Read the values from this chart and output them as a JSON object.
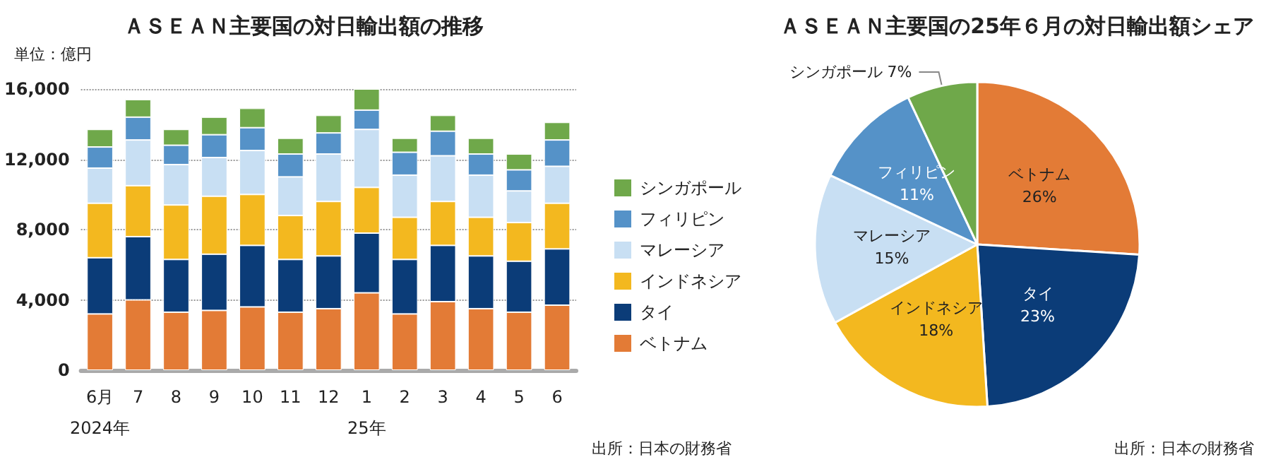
{
  "chart_data": [
    {
      "type": "bar",
      "title": "ＡＳＥＡＮ主要国の対日輸出額の推移",
      "ylabel": "単位：億円",
      "categories": [
        "6月\n2024年",
        "7",
        "8",
        "9",
        "10",
        "11",
        "12",
        "1\n25年",
        "2",
        "3",
        "4",
        "5",
        "6"
      ],
      "series": [
        {
          "name": "ベトナム",
          "color": "#e37b36",
          "values": [
            3200,
            4000,
            3300,
            3400,
            3600,
            3300,
            3500,
            4400,
            3200,
            3900,
            3500,
            3300,
            3700
          ]
        },
        {
          "name": "タイ",
          "color": "#0b3c78",
          "values": [
            3200,
            3600,
            3000,
            3200,
            3500,
            3000,
            3000,
            3400,
            3100,
            3200,
            3000,
            2900,
            3200
          ]
        },
        {
          "name": "インドネシア",
          "color": "#f3b81f",
          "values": [
            3100,
            2900,
            3100,
            3300,
            2900,
            2500,
            3100,
            2600,
            2400,
            2500,
            2200,
            2200,
            2600
          ]
        },
        {
          "name": "マレーシア",
          "color": "#c8dff3",
          "values": [
            2000,
            2600,
            2300,
            2200,
            2500,
            2200,
            2700,
            3300,
            2400,
            2600,
            2400,
            1800,
            2100
          ]
        },
        {
          "name": "フィリピン",
          "color": "#5592c8",
          "values": [
            1200,
            1300,
            1100,
            1300,
            1300,
            1300,
            1200,
            1100,
            1300,
            1400,
            1200,
            1200,
            1500
          ]
        },
        {
          "name": "シンガポール",
          "color": "#6fa84a",
          "values": [
            1000,
            1000,
            900,
            1000,
            1100,
            900,
            1000,
            1200,
            800,
            900,
            900,
            900,
            1000
          ]
        }
      ],
      "stacked": true,
      "ylim": [
        0,
        16000
      ],
      "yticks": [
        0,
        {
          "value": 4000,
          "label": "4,000"
        },
        {
          "value": 8000,
          "label": "8,000"
        },
        {
          "value": 12000,
          "label": "12,000"
        },
        {
          "value": 16000,
          "label": "16,000"
        }
      ],
      "grid": "y",
      "legend": "right",
      "annotations": [
        "出所：日本の財務省"
      ]
    },
    {
      "type": "pie",
      "title": "ＡＳＥＡＮ主要国の25年６月の対日輸出額シェア",
      "categories": [
        "ベトナム",
        "タイ",
        "インドネシア",
        "マレーシア",
        "フィリピン",
        "シンガポール"
      ],
      "values": [
        26,
        23,
        18,
        15,
        11,
        7
      ],
      "colors": [
        "#e37b36",
        "#0b3c78",
        "#f3b81f",
        "#c8dff3",
        "#5592c8",
        "#6fa84a"
      ],
      "value_labels": [
        "26%",
        "23%",
        "18%",
        "15%",
        "11%",
        "7%"
      ],
      "annotations": [
        "出所：日本の財務省"
      ]
    }
  ]
}
